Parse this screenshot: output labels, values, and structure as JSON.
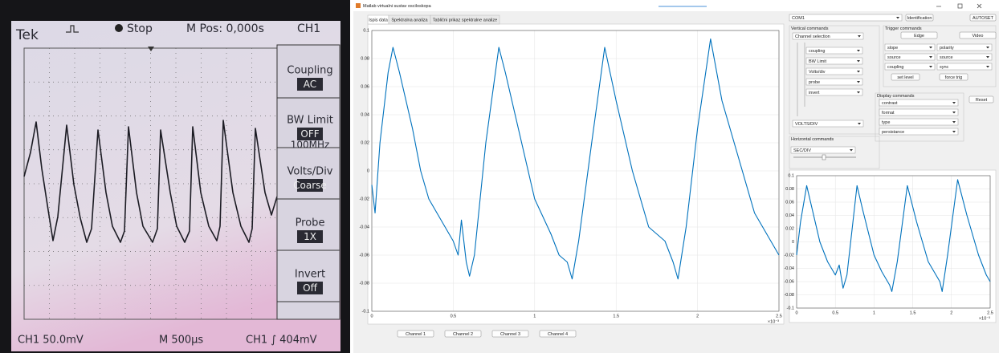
{
  "scope_photo": {
    "brand": "Tek",
    "status": "Stop",
    "position": "M Pos: 0,000s",
    "channel": "CH1",
    "menu": [
      {
        "label": "Coupling",
        "value": "AC"
      },
      {
        "label": "BW Limit",
        "value": "OFF",
        "extra": "100MHz"
      },
      {
        "label": "Volts/Div",
        "value": "Coarse"
      },
      {
        "label": "Probe",
        "value": "1X"
      },
      {
        "label": "Invert",
        "value": "Off"
      }
    ],
    "footer": [
      "CH1  50.0mV",
      "M 500µs",
      "CH1 ∫ 404mV"
    ]
  },
  "window": {
    "title": "Matlab virtualni sustav osciloskopa",
    "tabs": [
      "Ispis data",
      "Spektralna analiza",
      "Tablični prikaz spektralne analize"
    ],
    "channel_buttons": [
      "Channel 1",
      "Channel 2",
      "Channel 3",
      "Channel 4"
    ]
  },
  "controls": {
    "port": "COM1",
    "identification": "Identification",
    "autoset": "AUTOSET",
    "vertical": {
      "title": "Vertical commands",
      "channel": "Channel selection",
      "items": [
        "coupling",
        "BW Limit",
        "Volts/div",
        "probe",
        "invert"
      ],
      "volts": "VOLTS/DIV"
    },
    "horizontal": {
      "title": "Horizontal commands",
      "sec": "SEC/DIV"
    },
    "trigger": {
      "title": "Trigger commands",
      "modes": [
        "Edge",
        "Video"
      ],
      "left": [
        "slope",
        "source",
        "coupling"
      ],
      "right": [
        "polarity",
        "source",
        "sync"
      ],
      "buttons": [
        "set level",
        "force trig"
      ]
    },
    "display": {
      "title": "Display commands",
      "items": [
        "contrast",
        "format",
        "type",
        "persistance"
      ],
      "reset": "Reset"
    }
  },
  "chart_data": [
    {
      "type": "line",
      "x": [
        0,
        0.02,
        0.05,
        0.1,
        0.13,
        0.17,
        0.25,
        0.3,
        0.35,
        0.4,
        0.45,
        0.5,
        0.53,
        0.55,
        0.58,
        0.6,
        0.63,
        0.7,
        0.78,
        0.82,
        0.9,
        1.0,
        1.1,
        1.15,
        1.2,
        1.23,
        1.27,
        1.35,
        1.43,
        1.5,
        1.6,
        1.7,
        1.8,
        1.85,
        1.88,
        1.93,
        2.0,
        2.08,
        2.15,
        2.25,
        2.35,
        2.45,
        2.5
      ],
      "values": [
        -0.01,
        -0.03,
        0.02,
        0.07,
        0.088,
        0.07,
        0.03,
        0,
        -0.02,
        -0.03,
        -0.04,
        -0.05,
        -0.06,
        -0.035,
        -0.065,
        -0.075,
        -0.06,
        0.02,
        0.088,
        0.07,
        0.03,
        -0.02,
        -0.045,
        -0.06,
        -0.065,
        -0.077,
        -0.05,
        0.02,
        0.088,
        0.05,
        0,
        -0.04,
        -0.05,
        -0.065,
        -0.077,
        -0.04,
        0.03,
        0.094,
        0.05,
        0.01,
        -0.03,
        -0.05,
        -0.06
      ],
      "color": "#0072bd",
      "xlim": [
        0,
        2.5
      ],
      "ylim": [
        -0.1,
        0.1
      ],
      "xticks": [
        0,
        0.5,
        1,
        1.5,
        2,
        2.5
      ],
      "yticks": [
        -0.1,
        -0.08,
        -0.06,
        -0.04,
        -0.02,
        0,
        0.02,
        0.04,
        0.06,
        0.08,
        0.1
      ],
      "x_exponent": "×10⁻³",
      "grid": true
    },
    {
      "type": "line",
      "x": [
        0,
        0.05,
        0.13,
        0.2,
        0.3,
        0.4,
        0.5,
        0.55,
        0.6,
        0.65,
        0.78,
        0.85,
        1.0,
        1.1,
        1.2,
        1.23,
        1.3,
        1.43,
        1.55,
        1.7,
        1.85,
        1.88,
        1.95,
        2.08,
        2.2,
        2.35,
        2.45,
        2.5
      ],
      "values": [
        -0.02,
        0.03,
        0.085,
        0.05,
        0,
        -0.03,
        -0.05,
        -0.035,
        -0.07,
        -0.05,
        0.085,
        0.05,
        -0.02,
        -0.045,
        -0.065,
        -0.075,
        -0.03,
        0.085,
        0.03,
        -0.03,
        -0.06,
        -0.075,
        -0.02,
        0.094,
        0.04,
        -0.02,
        -0.05,
        -0.06
      ],
      "color": "#0072bd",
      "xlim": [
        0,
        2.5
      ],
      "ylim": [
        -0.1,
        0.1
      ],
      "xticks": [
        0,
        0.5,
        1,
        1.5,
        2,
        2.5
      ],
      "yticks": [
        -0.1,
        -0.08,
        -0.06,
        -0.04,
        -0.02,
        0,
        0.02,
        0.04,
        0.06,
        0.08,
        0.1
      ],
      "x_exponent": "×10⁻³",
      "grid": true
    }
  ]
}
